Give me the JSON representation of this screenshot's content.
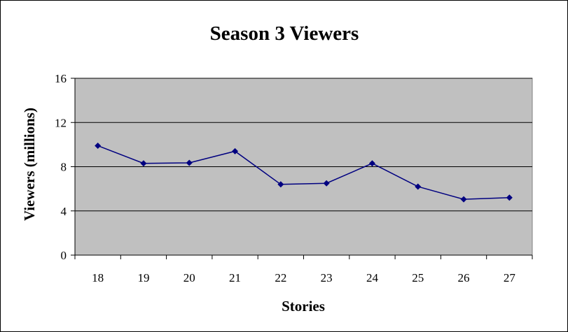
{
  "chart_data": {
    "type": "line",
    "title": "Season 3 Viewers",
    "xlabel": "Stories",
    "ylabel": "Viewers (millions)",
    "categories": [
      "18",
      "19",
      "20",
      "21",
      "22",
      "23",
      "24",
      "25",
      "26",
      "27"
    ],
    "series": [
      {
        "values": [
          9.9,
          8.3,
          8.35,
          9.4,
          6.4,
          6.5,
          8.3,
          6.2,
          5.05,
          5.2
        ]
      }
    ],
    "ylim": [
      0,
      16
    ],
    "yticks": [
      0,
      4,
      8,
      12,
      16
    ],
    "grid": true,
    "legend": "none",
    "colors": {
      "plot_background": "#c0c0c0",
      "line": "#000080",
      "gridline": "#000000"
    }
  }
}
